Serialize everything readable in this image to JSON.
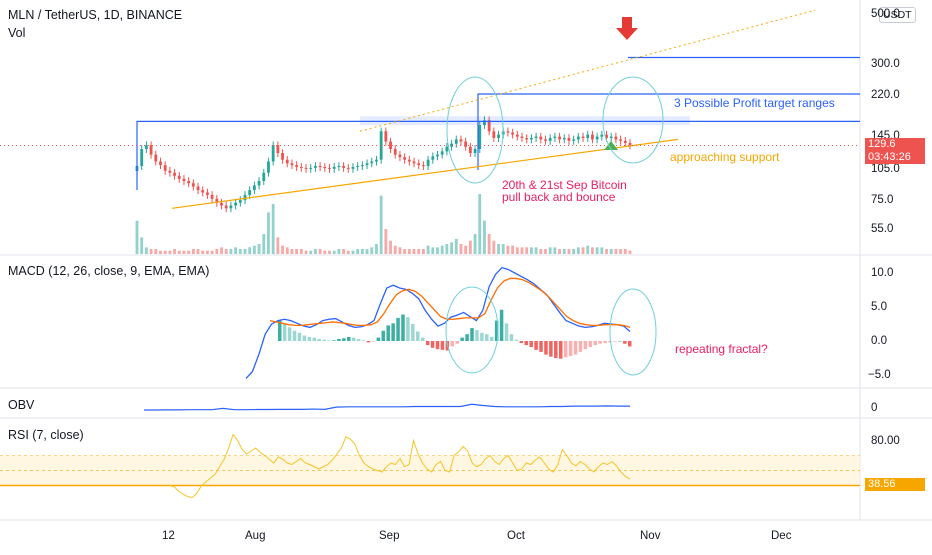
{
  "header": {
    "pair_title": "MLN / TetherUS, 1D, BINANCE",
    "vol_label": "Vol",
    "currency": "USDT"
  },
  "colors": {
    "up": "#26a69a",
    "down": "#ef5350",
    "target_line": "#2962ff",
    "support_line": "#f7a600",
    "macd_line": "#2962ff",
    "signal_line": "#ff6d00",
    "obv_line": "#2962ff",
    "rsi_line": "#f7c325",
    "ellipse": "#6fd0d8",
    "annotation_pink": "#e91e63",
    "annotation_orange": "#f7a600"
  },
  "icons": {
    "arrow": "red-down-arrow-icon"
  },
  "price_pane": {
    "y_ticks": [
      "500.0",
      "300.0",
      "220.0",
      "145.0",
      "105.0",
      "75.0",
      "55.0"
    ],
    "last_price": "129.6",
    "countdown": "03:43:26",
    "annotations": {
      "targets": "3 Possible Profit target ranges",
      "support": "approaching support",
      "bitcoin_line1": "20th & 21st Sep Bitcoin",
      "bitcoin_line2": "pull back and bounce"
    }
  },
  "macd_pane": {
    "title": "MACD (12, 26, close, 9, EMA, EMA)",
    "y_ticks": [
      "10.0",
      "5.0",
      "0.0",
      "−5.0"
    ],
    "annotation": "repeating fractal?"
  },
  "obv_pane": {
    "title": "OBV",
    "y_ticks": [
      "0"
    ]
  },
  "rsi_pane": {
    "title": "RSI (7, close)",
    "y_ticks": [
      "80.00"
    ],
    "last_value": "38.56"
  },
  "x_axis": {
    "labels": [
      "12",
      "Aug",
      "Sep",
      "Oct",
      "Nov",
      "Dec"
    ]
  },
  "chart_data": [
    {
      "type": "candlestick",
      "title": "MLN / TetherUS, 1D, BINANCE",
      "series_note": "daily candles, approximate closes read from chart",
      "x_labels": [
        "12",
        "Aug",
        "Sep",
        "Oct",
        "Nov",
        "Dec"
      ],
      "y_ticks": [
        500,
        300,
        220,
        145,
        105,
        75,
        55
      ],
      "scale": "log",
      "closes": [
        105,
        125,
        130,
        118,
        110,
        106,
        100,
        98,
        95,
        92,
        90,
        88,
        85,
        82,
        80,
        78,
        75,
        72,
        70,
        68,
        70,
        72,
        74,
        78,
        82,
        86,
        90,
        98,
        110,
        130,
        120,
        112,
        108,
        106,
        104,
        103,
        102,
        103,
        105,
        104,
        103,
        102,
        104,
        105,
        103,
        102,
        104,
        105,
        106,
        108,
        110,
        112,
        150,
        135,
        125,
        118,
        115,
        112,
        110,
        108,
        106,
        105,
        112,
        116,
        118,
        122,
        128,
        132,
        138,
        135,
        128,
        120,
        125,
        160,
        168,
        150,
        140,
        145,
        150,
        148,
        145,
        142,
        140,
        138,
        140,
        142,
        138,
        136,
        140,
        142,
        138,
        140,
        136,
        138,
        142,
        140,
        145,
        138,
        142,
        145,
        140,
        142,
        138,
        136,
        133,
        130
      ],
      "last": 129.6,
      "horizontal_levels": [
        166,
        220,
        320
      ],
      "upper_trendline": {
        "from": 150,
        "to": 520
      },
      "support_trendline": {
        "from": 68,
        "to": 138
      }
    },
    {
      "type": "bar",
      "title": "Vol",
      "values": [
        2,
        1,
        0.4,
        0.3,
        0.3,
        0.2,
        0.2,
        0.2,
        0.3,
        0.2,
        0.2,
        0.2,
        0.3,
        0.3,
        0.2,
        0.2,
        0.2,
        0.3,
        0.4,
        0.3,
        0.3,
        0.4,
        0.3,
        0.3,
        0.4,
        0.5,
        0.6,
        1.2,
        2.5,
        3.0,
        1.0,
        0.5,
        0.4,
        0.3,
        0.3,
        0.3,
        0.2,
        0.2,
        0.3,
        0.3,
        0.2,
        0.2,
        0.2,
        0.3,
        0.3,
        0.2,
        0.2,
        0.3,
        0.3,
        0.3,
        0.4,
        0.6,
        3.5,
        1.5,
        0.8,
        0.5,
        0.4,
        0.3,
        0.3,
        0.3,
        0.3,
        0.3,
        0.5,
        0.4,
        0.4,
        0.5,
        0.6,
        0.7,
        0.9,
        0.6,
        0.5,
        0.8,
        1.2,
        3.6,
        2.0,
        1.2,
        0.8,
        0.6,
        0.6,
        0.5,
        0.5,
        0.4,
        0.4,
        0.4,
        0.4,
        0.4,
        0.3,
        0.3,
        0.4,
        0.4,
        0.3,
        0.3,
        0.3,
        0.3,
        0.4,
        0.4,
        0.5,
        0.4,
        0.4,
        0.4,
        0.3,
        0.3,
        0.3,
        0.3,
        0.3,
        0.2
      ]
    },
    {
      "type": "line",
      "title": "MACD (12, 26, close, 9, EMA, EMA)",
      "ylim": [
        -5,
        12
      ],
      "series": [
        {
          "values": [
            -5.5,
            -4.5,
            -2,
            1,
            2.5,
            3.0,
            3.2,
            3.0,
            2.6,
            2.2,
            2.0,
            2.4,
            3.0,
            3.2,
            3.3,
            2.8,
            2.3,
            2.0,
            2.1,
            2.4,
            3.0,
            5.5,
            7.8,
            8.2,
            7.8,
            7.6,
            7.0,
            6.2,
            4.5,
            3.2,
            2.2,
            2.6,
            3.5,
            3.8,
            4.2,
            3.6,
            3.0,
            4.5,
            8.0,
            9.8,
            10.8,
            10.5,
            10.0,
            9.5,
            9.0,
            8.4,
            7.6,
            6.8,
            5.5,
            4.2,
            3.0,
            2.6,
            2.2,
            2.0,
            2.1,
            2.3,
            2.6,
            2.5,
            2.4,
            2.2,
            1.4
          ]
        },
        {
          "values": [
            2.8,
            2.9,
            3.0,
            3.0,
            2.8,
            2.6,
            2.4,
            2.3,
            2.3,
            2.4,
            2.5,
            2.6,
            2.7,
            2.8,
            2.7,
            2.6,
            2.4,
            2.3,
            2.3,
            2.4,
            2.8,
            4.0,
            5.5,
            6.8,
            7.4,
            7.6,
            7.3,
            6.6,
            5.6,
            4.6,
            3.6,
            3.2,
            3.2,
            3.3,
            3.4,
            3.4,
            3.4,
            4.0,
            6.0,
            7.8,
            8.8,
            9.2,
            9.2,
            9.0,
            8.6,
            8.0,
            7.4,
            6.6,
            5.6,
            4.6,
            3.6,
            3.0,
            2.6,
            2.4,
            2.3,
            2.3,
            2.4,
            2.4,
            2.4,
            2.3,
            2.0
          ]
        }
      ],
      "histogram": [
        3.0,
        2.5,
        2.0,
        1.5,
        1.2,
        0.8,
        0.6,
        0.5,
        0.3,
        0.2,
        0.1,
        0.1,
        0.3,
        0.4,
        0.6,
        0.5,
        0.3,
        0.1,
        -0.2,
        -0.1,
        0.5,
        1.5,
        2.3,
        2.6,
        3.4,
        3.9,
        3.5,
        2.5,
        1.4,
        0.5,
        -0.6,
        -1.0,
        -1.2,
        -1.3,
        -1.4,
        -0.8,
        -0.4,
        0.5,
        1.0,
        1.9,
        1.6,
        1.2,
        1.0,
        0.6,
        3.0,
        4.6,
        2.6,
        1.0,
        0.2,
        -0.3,
        -0.6,
        -0.9,
        -1.3,
        -1.6,
        -2.0,
        -2.3,
        -2.5,
        -2.6,
        -2.4,
        -2.2,
        -2.0,
        -1.6,
        -1.2,
        -0.9,
        -0.6,
        -0.4,
        -0.3,
        -0.2,
        -0.1,
        0.0,
        -0.4,
        -0.8
      ]
    },
    {
      "type": "line",
      "title": "OBV",
      "values": [
        0.0,
        0.0,
        0.05,
        0.05,
        0.1,
        0.1,
        0.1,
        0.5,
        0.1,
        0.1,
        0.15,
        0.15,
        0.2,
        0.2,
        0.2,
        0.3,
        0.2,
        0.9,
        1.0,
        1.0,
        1.0,
        1.0,
        1.0,
        1.0,
        1.1,
        1.1,
        1.1,
        1.1,
        1.1,
        1.8,
        1.4,
        1.1,
        1.0,
        1.0,
        1.0,
        1.0,
        1.1,
        1.1,
        1.2,
        1.2,
        1.2,
        1.3,
        1.2,
        1.2
      ]
    },
    {
      "type": "line",
      "title": "RSI (7, close)",
      "ylim": [
        0,
        100
      ],
      "band": [
        30,
        70
      ],
      "last": 38.56,
      "values": [
        30,
        28,
        22,
        18,
        15,
        14,
        20,
        30,
        35,
        40,
        45,
        55,
        65,
        80,
        98,
        90,
        78,
        72,
        76,
        80,
        74,
        70,
        65,
        60,
        68,
        65,
        60,
        58,
        62,
        66,
        60,
        58,
        55,
        52,
        55,
        58,
        64,
        72,
        80,
        95,
        92,
        85,
        70,
        60,
        55,
        52,
        50,
        48,
        55,
        60,
        58,
        66,
        55,
        58,
        90,
        72,
        60,
        52,
        48,
        58,
        62,
        50,
        48,
        70,
        75,
        82,
        76,
        60,
        55,
        58,
        66,
        70,
        62,
        58,
        66,
        70,
        60,
        50,
        52,
        60,
        58,
        64,
        68,
        60,
        52,
        48,
        58,
        78,
        70,
        60,
        56,
        62,
        58,
        52,
        48,
        55,
        60,
        58,
        62,
        56,
        48,
        42,
        38.56
      ]
    }
  ]
}
